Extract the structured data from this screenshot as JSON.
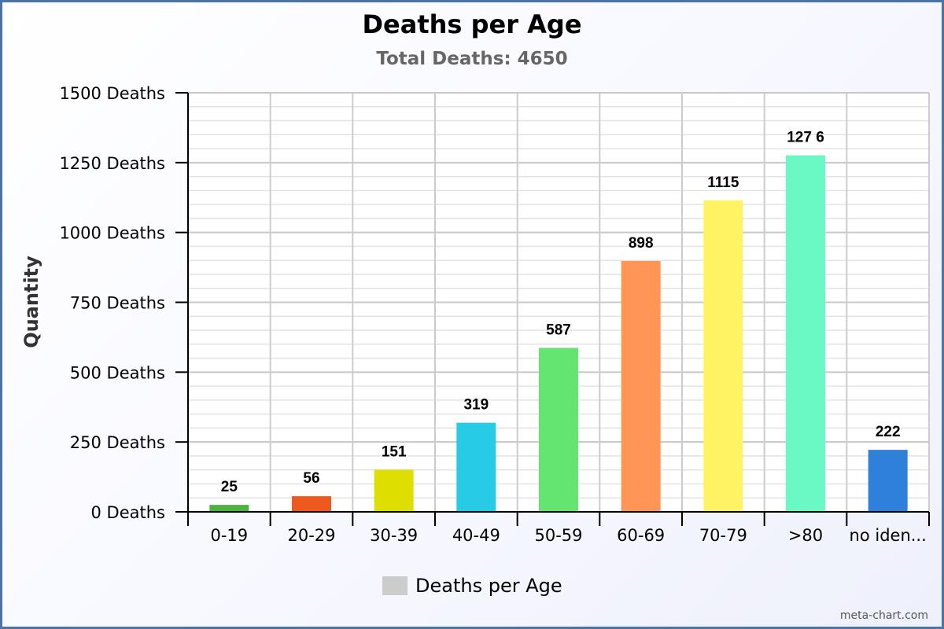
{
  "chart_data": {
    "type": "bar",
    "title": "Deaths per Age",
    "subtitle": "Total Deaths: 4650",
    "xlabel": "",
    "ylabel": "Quantity",
    "categories": [
      "0-19",
      "20-29",
      "30-39",
      "40-49",
      "50-59",
      "60-69",
      "70-79",
      ">80",
      "no iden..."
    ],
    "values": [
      25,
      56,
      151,
      319,
      587,
      898,
      1115,
      1276,
      222
    ],
    "value_labels": [
      "25",
      "56",
      "151",
      "319",
      "587",
      "898",
      "1115",
      "127 6",
      "222"
    ],
    "colors": [
      "#4eb33e",
      "#ee5a1e",
      "#dedf00",
      "#27cbe4",
      "#64e572",
      "#ff9655",
      "#fff263",
      "#6af9c4",
      "#2f80da"
    ],
    "ylim": [
      0,
      1500
    ],
    "yticks": [
      0,
      250,
      500,
      750,
      1000,
      1250,
      1500
    ],
    "ytick_labels": [
      "0 Deaths",
      "250 Deaths",
      "500 Deaths",
      "750 Deaths",
      "1000 Deaths",
      "1250 Deaths",
      "1500 Deaths"
    ],
    "grid": true,
    "legend": {
      "position": "bottom",
      "entries": [
        {
          "name": "Deaths per Age",
          "color": "#cccccc"
        }
      ]
    },
    "credit": "meta-chart.com"
  }
}
